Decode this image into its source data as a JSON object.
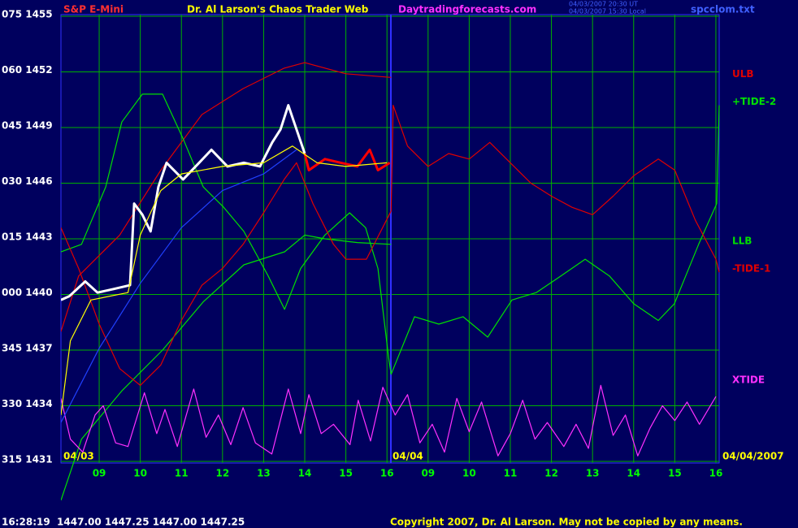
{
  "chart_data": {
    "type": "line",
    "title": "S&P E-Mini",
    "subtitle": "Dr. Al Larson's Chaos Trader Web",
    "site": "Daytradingforecasts.com",
    "timestamps": [
      "04/03/2007 20:30 UT",
      "04/03/2007 15:30 Local"
    ],
    "file": "spcclom.txt",
    "status_line": "16:28:19  1447.00 1447.25 1447.00 1447.25",
    "copyright": "Copyright 2007, Dr. Al Larson. May not be copied by any means.",
    "date_labels": [
      "04/03",
      "04/04",
      "04/04/2007"
    ],
    "xlim": [
      8.07,
      24.08
    ],
    "xticks": [
      {
        "value": 9,
        "label": "09"
      },
      10,
      11,
      12,
      13,
      14,
      15,
      16,
      {
        "value": 17,
        "label": "09"
      },
      {
        "value": 18,
        "label": "10"
      },
      {
        "value": 19,
        "label": "11"
      },
      {
        "value": 20,
        "label": "12"
      },
      {
        "value": 21,
        "label": "13"
      },
      {
        "value": 22,
        "label": "14"
      },
      {
        "value": 23,
        "label": "15"
      },
      {
        "value": 24,
        "label": "16"
      }
    ],
    "ylim": [
      1431,
      1455
    ],
    "yticks": [
      {
        "value": 1455,
        "label": "075 1455"
      },
      {
        "value": 1452,
        "label": "060 1452"
      },
      {
        "value": 1449,
        "label": "045 1449"
      },
      {
        "value": 1446,
        "label": "030 1446"
      },
      {
        "value": 1443,
        "label": "015 1443"
      },
      {
        "value": 1440,
        "label": "000 1440"
      },
      {
        "value": 1437,
        "label": "345 1437"
      },
      {
        "value": 1434,
        "label": "330 1434"
      },
      {
        "value": 1431,
        "label": "315 1431"
      }
    ],
    "grid": true,
    "grid_color": "#00b000",
    "series": [
      {
        "name": "ULB",
        "color": "#e00000",
        "x": [
          8.07,
          8.5,
          9.5,
          10.5,
          11.5,
          12.5,
          13.5,
          14,
          15,
          16.1
        ],
        "values": [
          1438.0,
          1441.0,
          1443.2,
          1446.7,
          1449.7,
          1451.1,
          1452.2,
          1452.5,
          1451.9,
          1451.7
        ]
      },
      {
        "name": "+TIDE-2",
        "color": "#00e000",
        "x": [
          8.07,
          8.57,
          9.16,
          9.55,
          10.05,
          10.54,
          11.04,
          11.53,
          12.03,
          12.52,
          13.11,
          13.51,
          13.9,
          14.49,
          15.09,
          15.48,
          15.78,
          16.04,
          16.1,
          16.67,
          17.26,
          17.85,
          18.45,
          19.04,
          19.63,
          20.23,
          20.82,
          21.41,
          22.0,
          22.6,
          22.99,
          23.58,
          24.02,
          24.08
        ],
        "values": [
          1442.3,
          1442.7,
          1445.8,
          1449.3,
          1450.8,
          1450.8,
          1448.4,
          1445.8,
          1444.7,
          1443.4,
          1441.0,
          1439.2,
          1441.4,
          1443.2,
          1444.4,
          1443.6,
          1441.4,
          1436.6,
          1435.7,
          1438.8,
          1438.4,
          1438.8,
          1437.7,
          1439.7,
          1440.1,
          1441.0,
          1441.9,
          1441.0,
          1439.5,
          1438.6,
          1439.5,
          1442.7,
          1444.9,
          1450.2
        ]
      },
      {
        "name": "LLB",
        "color": "#00e000",
        "x": [
          8.07,
          8.57,
          9.55,
          10.54,
          11.53,
          12.52,
          13.51,
          14.0,
          14.49,
          15.28,
          16.1
        ],
        "values": [
          1428.9,
          1432.2,
          1434.8,
          1437.0,
          1439.6,
          1441.6,
          1442.3,
          1443.2,
          1443.0,
          1442.8,
          1442.7
        ]
      },
      {
        "name": "-TIDE-1",
        "color": "#e00000",
        "x": [
          8.07,
          8.5,
          9,
          9.5,
          10,
          10.5,
          11,
          11.5,
          12,
          12.5,
          13,
          13.5,
          13.8,
          14.2,
          14.7,
          15,
          15.5,
          16.1,
          16.15,
          16.5,
          17,
          17.5,
          18,
          18.5,
          19,
          19.5,
          20,
          20.5,
          21,
          21.5,
          22,
          22.6,
          23,
          23.5,
          24,
          24.08
        ],
        "values": [
          1443.6,
          1441.4,
          1438.4,
          1436.0,
          1435.1,
          1436.2,
          1438.6,
          1440.5,
          1441.4,
          1442.7,
          1444.4,
          1446.2,
          1447.1,
          1444.9,
          1442.7,
          1441.9,
          1441.9,
          1444.5,
          1450.2,
          1448.0,
          1446.9,
          1447.6,
          1447.3,
          1448.2,
          1447.1,
          1446.0,
          1445.3,
          1444.7,
          1444.3,
          1445.3,
          1446.4,
          1447.3,
          1446.7,
          1444.0,
          1441.9,
          1441.2
        ]
      },
      {
        "name": "XTIDE",
        "color": "#ff30ff",
        "x": [
          8.07,
          8.3,
          8.6,
          8.9,
          9.1,
          9.4,
          9.7,
          10.1,
          10.4,
          10.6,
          10.9,
          11.3,
          11.6,
          11.9,
          12.2,
          12.5,
          12.8,
          13.2,
          13.6,
          13.9,
          14.1,
          14.4,
          14.7,
          15.1,
          15.3,
          15.6,
          15.9,
          16.2,
          16.5,
          16.8,
          17.1,
          17.4,
          17.7,
          18.0,
          18.3,
          18.7,
          19.0,
          19.3,
          19.6,
          19.9,
          20.3,
          20.6,
          20.9,
          21.2,
          21.5,
          21.8,
          22.1,
          22.4,
          22.7,
          23.0,
          23.3,
          23.6,
          24.0
        ],
        "values": [
          1434.4,
          1432.2,
          1431.5,
          1433.5,
          1434.0,
          1432.0,
          1431.8,
          1434.7,
          1432.5,
          1433.8,
          1431.8,
          1434.9,
          1432.3,
          1433.5,
          1431.9,
          1433.9,
          1432.0,
          1431.4,
          1434.9,
          1432.5,
          1434.6,
          1432.5,
          1433.0,
          1431.9,
          1434.3,
          1432.1,
          1435.0,
          1433.5,
          1434.6,
          1432.0,
          1433.0,
          1431.5,
          1434.4,
          1432.6,
          1434.2,
          1431.3,
          1432.5,
          1434.3,
          1432.2,
          1433.1,
          1431.8,
          1433.0,
          1431.7,
          1435.1,
          1432.4,
          1433.5,
          1431.3,
          1432.8,
          1434.0,
          1433.2,
          1434.2,
          1433.0,
          1434.5
        ]
      },
      {
        "color": "#2040ff",
        "x": [
          8.07,
          9,
          10,
          11,
          12,
          13,
          13.8
        ],
        "values": [
          1433.1,
          1437.1,
          1440.6,
          1443.6,
          1445.6,
          1446.5,
          1447.8
        ]
      },
      {
        "color": "#ffffff",
        "x": [
          8.07,
          8.27,
          8.66,
          8.96,
          9.36,
          9.75,
          9.85,
          10.05,
          10.25,
          10.44,
          10.64,
          11.04,
          11.43,
          11.73,
          12.12,
          12.52,
          12.91,
          13.21,
          13.41,
          13.6,
          13.8,
          14.0
        ],
        "values": [
          1439.7,
          1439.9,
          1440.7,
          1440.1,
          1440.3,
          1440.5,
          1444.9,
          1444.3,
          1443.4,
          1445.8,
          1447.1,
          1446.2,
          1447.1,
          1447.8,
          1446.9,
          1447.1,
          1446.9,
          1448.2,
          1448.9,
          1450.2,
          1448.9,
          1447.6
        ]
      },
      {
        "color": "#ff0000",
        "x": [
          14.0,
          14.1,
          14.49,
          14.88,
          15.28,
          15.58,
          15.78,
          16.07
        ],
        "values": [
          1447.6,
          1446.7,
          1447.3,
          1447.1,
          1446.9,
          1447.8,
          1446.7,
          1447.1
        ]
      },
      {
        "color": "#ffff00",
        "x": [
          8.07,
          8.3,
          8.8,
          9.7,
          10,
          10.5,
          11,
          12,
          13,
          13.7,
          14.3,
          15,
          16
        ],
        "values": [
          1433.5,
          1437.5,
          1439.7,
          1440.1,
          1443.2,
          1445.6,
          1446.5,
          1446.9,
          1447.1,
          1448.0,
          1447.1,
          1446.9,
          1447.1
        ]
      }
    ]
  }
}
